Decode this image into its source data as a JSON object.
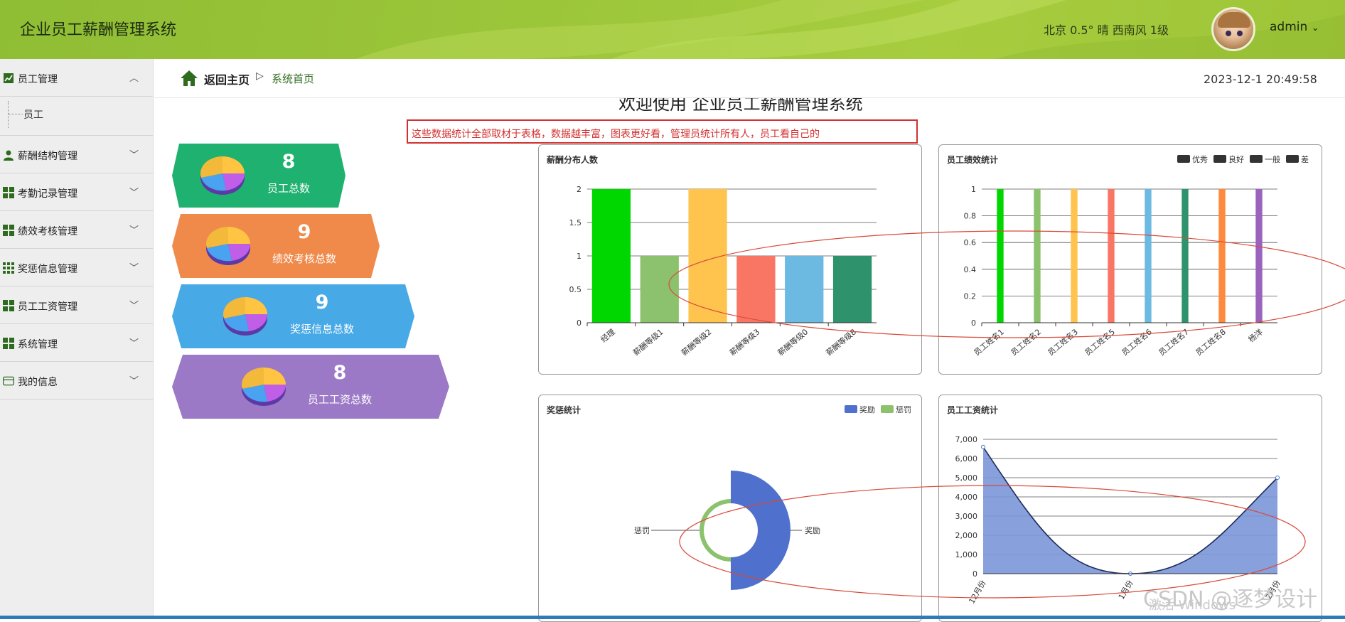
{
  "header": {
    "title": "企业员工薪酬管理系统",
    "weather": "北京  0.5°  晴  西南风  1级",
    "user": "admin",
    "user_chevron": "⌄"
  },
  "sidebar": {
    "items": [
      {
        "label": "员工管理",
        "icon": "chart-line-icon",
        "expanded": true,
        "chevron": "︿",
        "children": [
          "员工"
        ]
      },
      {
        "label": "薪酬结构管理",
        "icon": "user-icon",
        "chevron": "﹀"
      },
      {
        "label": "考勤记录管理",
        "icon": "grid-icon",
        "chevron": "﹀"
      },
      {
        "label": "绩效考核管理",
        "icon": "grid-icon",
        "chevron": "﹀"
      },
      {
        "label": "奖惩信息管理",
        "icon": "grid9-icon",
        "chevron": "﹀"
      },
      {
        "label": "员工工资管理",
        "icon": "grid-icon",
        "chevron": "﹀"
      },
      {
        "label": "系统管理",
        "icon": "grid-icon",
        "chevron": "﹀"
      },
      {
        "label": "我的信息",
        "icon": "card-icon",
        "chevron": "﹀"
      }
    ]
  },
  "breadcrumb": {
    "home": "返回主页",
    "separator": "▷",
    "current": "系统首页"
  },
  "datetime": "2023-12-1 20:49:58",
  "welcome": "欢迎使用 企业员工薪酬管理系统",
  "annotation": "这些数据统计全部取材于表格，数据越丰富，图表更好看，管理员统计所有人，员工看自己的",
  "stats": [
    {
      "value": "8",
      "label": "员工总数",
      "color": "#1fb16f"
    },
    {
      "value": "9",
      "label": "绩效考核总数",
      "color": "#f08a4b"
    },
    {
      "value": "9",
      "label": "奖惩信息总数",
      "color": "#47a9e6"
    },
    {
      "value": "8",
      "label": "员工工资总数",
      "color": "#9c79c6"
    }
  ],
  "chart_data": [
    {
      "type": "bar",
      "title": "薪酬分布人数",
      "categories": [
        "经理",
        "薪酬等级1",
        "薪酬等级2",
        "薪酬等级3",
        "薪酬等级0",
        "薪酬等级8"
      ],
      "values": [
        2,
        1,
        2,
        1,
        1,
        1
      ],
      "colors": [
        "#00d700",
        "#8cc26d",
        "#ffc44e",
        "#fa7664",
        "#6cb9e2",
        "#2e936d"
      ],
      "ylim": [
        0,
        2
      ],
      "yticks": [
        "0",
        "0.5",
        "1",
        "1.5",
        "2"
      ],
      "grid": true
    },
    {
      "type": "bar",
      "title": "员工绩效统计",
      "legend": [
        "优秀",
        "良好",
        "一般",
        "差"
      ],
      "legend_position": "top-right",
      "categories": [
        "员工姓名1",
        "员工姓名2",
        "员工姓名3",
        "员工姓名5",
        "员工姓名6",
        "员工姓名7",
        "员工姓名8",
        "杨洋"
      ],
      "values": [
        1,
        1,
        1,
        1,
        1,
        1,
        1,
        1
      ],
      "colors": [
        "#00d700",
        "#8cc26d",
        "#ffc44e",
        "#fa7664",
        "#6cb9e2",
        "#2e936d",
        "#ff8a3d",
        "#9b63bd"
      ],
      "ylim": [
        0,
        1
      ],
      "yticks": [
        "0",
        "0.2",
        "0.4",
        "0.6",
        "0.8",
        "1"
      ],
      "grid": true
    },
    {
      "type": "pie",
      "title": "奖惩统计",
      "legend": [
        "奖励",
        "惩罚"
      ],
      "legend_position": "top-right",
      "labels": [
        "惩罚",
        "奖励"
      ],
      "values": [
        5,
        4
      ],
      "colors": [
        "#4f70cc",
        "#8cc26d"
      ]
    },
    {
      "type": "area",
      "title": "员工工资统计",
      "categories": [
        "12月份",
        "1月份",
        "2月份"
      ],
      "values": [
        6600,
        0,
        5000
      ],
      "ylim": [
        0,
        7000
      ],
      "yticks": [
        "0",
        "1,000",
        "2,000",
        "3,000",
        "4,000",
        "5,000",
        "6,000",
        "7,000"
      ],
      "color": "#7b96d8",
      "grid": true
    }
  ],
  "watermark": "CSDN @逐梦设计",
  "activate": "激活 Windows"
}
